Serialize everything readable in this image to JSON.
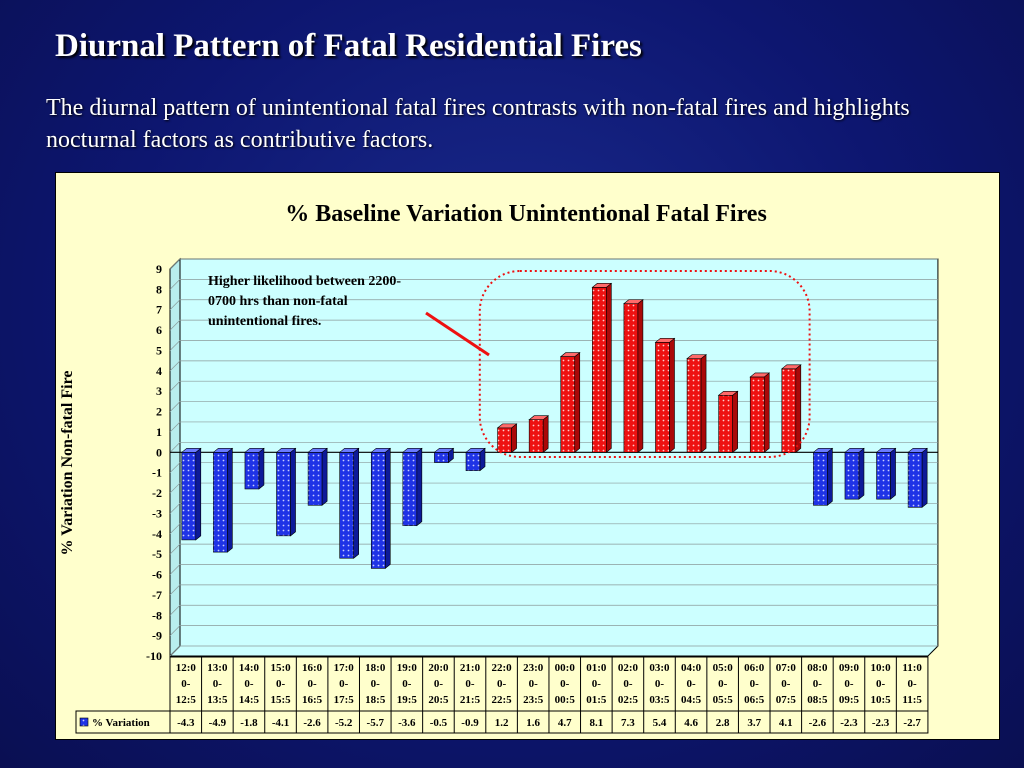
{
  "slide": {
    "title": "Diurnal Pattern of Fatal Residential Fires",
    "subtitle": "The diurnal pattern of unintentional fatal fires contrasts with non-fatal fires and highlights nocturnal factors as contributive factors."
  },
  "colors": {
    "background": "#0d1670",
    "panel": "#ffffcc",
    "plot_area": "#ccffff",
    "negative_bar": "#1f33e6",
    "positive_bar": "#ee1111",
    "annotation": "#ee1111"
  },
  "chart_data": {
    "type": "bar",
    "title": "% Baseline Variation Unintentional Fatal Fires",
    "ylabel": "% Variation Non-fatal Fire",
    "xlabel": "",
    "ylim": [
      -10,
      9
    ],
    "yticks": [
      9,
      8,
      7,
      6,
      5,
      4,
      3,
      2,
      1,
      0,
      -1,
      -2,
      -3,
      -4,
      -5,
      -6,
      -7,
      -8,
      -9,
      -10
    ],
    "grid": true,
    "categories": [
      "12:00-12:5",
      "13:00-13:5",
      "14:00-14:5",
      "15:00-15:5",
      "16:00-16:5",
      "17:00-17:5",
      "18:00-18:5",
      "19:00-19:5",
      "20:00-20:5",
      "21:00-21:5",
      "22:00-22:5",
      "23:00-23:5",
      "00:00-00:5",
      "01:00-01:5",
      "02:00-02:5",
      "03:00-03:5",
      "04:00-04:5",
      "05:00-05:5",
      "06:00-06:5",
      "07:00-07:5",
      "08:00-08:5",
      "09:00-09:5",
      "10:00-10:5",
      "11:00-11:5"
    ],
    "category_lines": [
      [
        "12:0",
        "0-",
        "12:5"
      ],
      [
        "13:0",
        "0-",
        "13:5"
      ],
      [
        "14:0",
        "0-",
        "14:5"
      ],
      [
        "15:0",
        "0-",
        "15:5"
      ],
      [
        "16:0",
        "0-",
        "16:5"
      ],
      [
        "17:0",
        "0-",
        "17:5"
      ],
      [
        "18:0",
        "0-",
        "18:5"
      ],
      [
        "19:0",
        "0-",
        "19:5"
      ],
      [
        "20:0",
        "0-",
        "20:5"
      ],
      [
        "21:0",
        "0-",
        "21:5"
      ],
      [
        "22:0",
        "0-",
        "22:5"
      ],
      [
        "23:0",
        "0-",
        "23:5"
      ],
      [
        "00:0",
        "0-",
        "00:5"
      ],
      [
        "01:0",
        "0-",
        "01:5"
      ],
      [
        "02:0",
        "0-",
        "02:5"
      ],
      [
        "03:0",
        "0-",
        "03:5"
      ],
      [
        "04:0",
        "0-",
        "04:5"
      ],
      [
        "05:0",
        "0-",
        "05:5"
      ],
      [
        "06:0",
        "0-",
        "06:5"
      ],
      [
        "07:0",
        "0-",
        "07:5"
      ],
      [
        "08:0",
        "0-",
        "08:5"
      ],
      [
        "09:0",
        "0-",
        "09:5"
      ],
      [
        "10:0",
        "0-",
        "10:5"
      ],
      [
        "11:0",
        "0-",
        "11:5"
      ]
    ],
    "series": [
      {
        "name": "% Variation",
        "values": [
          -4.3,
          -4.9,
          -1.8,
          -4.1,
          -2.6,
          -5.2,
          -5.7,
          -3.6,
          -0.5,
          -0.9,
          1.2,
          1.6,
          4.7,
          8.1,
          7.3,
          5.4,
          4.6,
          2.8,
          3.7,
          4.1,
          -2.6,
          -2.3,
          -2.3,
          -2.7
        ],
        "table_values": [
          "-4.3",
          "-4.9",
          "-1.8",
          "-4.1",
          "-2.6",
          "-5.2",
          "-5.7",
          "-3.6",
          "-0.5",
          "-0.9",
          "1.2",
          "1.6",
          "4.7",
          "8.1",
          "7.3",
          "5.4",
          "4.6",
          "2.8",
          "3.7",
          "4.1",
          "-2.6",
          "-2.3",
          "-2.3",
          "-2.7"
        ]
      }
    ],
    "annotation": {
      "lines": [
        "Higher likelihood  between  2200-",
        "0700 hrs than non-fatal",
        "unintentional fires."
      ],
      "highlight_range": [
        "22:00-22:5",
        "07:00-07:5"
      ]
    },
    "data_table": true,
    "legend_placement": "data-table-left"
  }
}
